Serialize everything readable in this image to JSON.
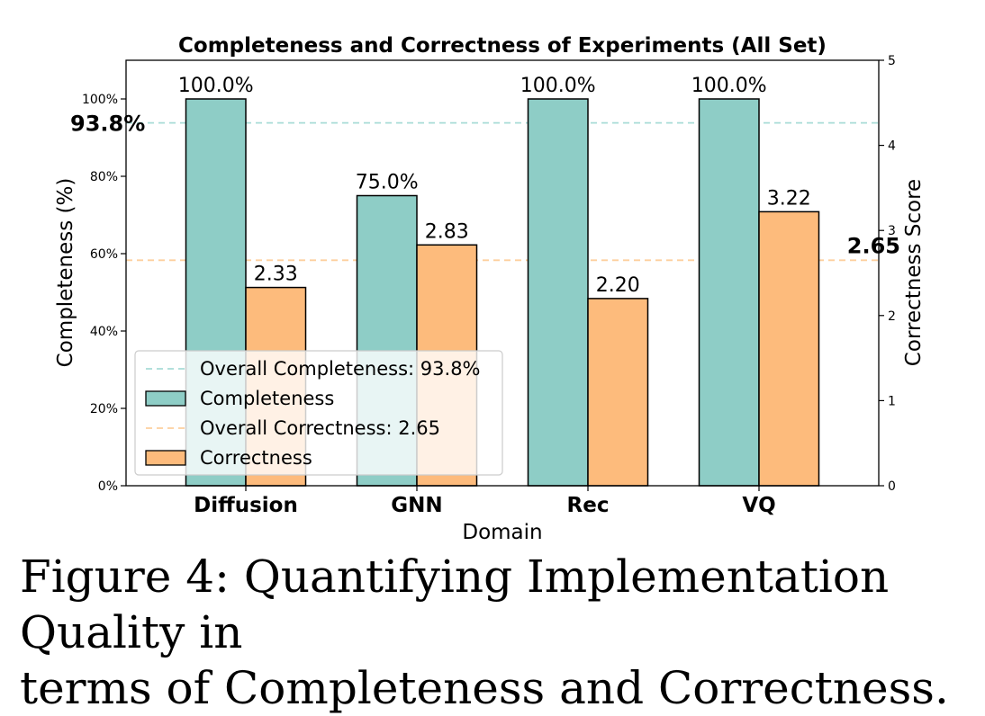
{
  "chart_data": {
    "type": "bar",
    "title": "Completeness and Correctness of Experiments (All Set)",
    "xlabel": "Domain",
    "ylabel_left": "Completeness (%)",
    "ylabel_right": "Correctness Score",
    "categories": [
      "Diffusion",
      "GNN",
      "Rec",
      "VQ"
    ],
    "ylim_left": [
      0,
      110
    ],
    "ylim_right": [
      0,
      5
    ],
    "left_ticks": [
      0,
      20,
      40,
      60,
      80,
      100
    ],
    "left_tick_labels": [
      "0%",
      "20%",
      "40%",
      "60%",
      "80%",
      "100%"
    ],
    "right_ticks": [
      0,
      1,
      2,
      3,
      4,
      5
    ],
    "right_tick_labels": [
      "0",
      "1",
      "2",
      "3",
      "4",
      "5"
    ],
    "series": [
      {
        "name": "Completeness",
        "axis": "left",
        "values": [
          100.0,
          75.0,
          100.0,
          100.0
        ],
        "labels": [
          "100.0%",
          "75.0%",
          "100.0%",
          "100.0%"
        ],
        "color": "#8ecdc6"
      },
      {
        "name": "Correctness",
        "axis": "right",
        "values": [
          2.33,
          2.83,
          2.2,
          3.22
        ],
        "labels": [
          "2.33",
          "2.83",
          "2.20",
          "3.22"
        ],
        "color": "#fdbb7c"
      }
    ],
    "reference_lines": [
      {
        "name": "Overall Completeness: 93.8%",
        "axis": "left",
        "value": 93.8,
        "label": "93.8%",
        "color": "#a8dcd7"
      },
      {
        "name": "Overall Correctness: 2.65",
        "axis": "right",
        "value": 2.65,
        "label": "2.65",
        "color": "#fdcf9e"
      }
    ],
    "legend_position": "lower-left",
    "legend": [
      {
        "kind": "line",
        "ref": 0,
        "label": "Overall Completeness: 93.8%"
      },
      {
        "kind": "patch",
        "series": 0,
        "label": "Completeness"
      },
      {
        "kind": "line",
        "ref": 1,
        "label": "Overall Correctness: 2.65"
      },
      {
        "kind": "patch",
        "series": 1,
        "label": "Correctness"
      }
    ]
  },
  "caption": {
    "line1": "Figure 4: Quantifying Implementation Quality in",
    "line2": "terms of Completeness and Correctness."
  }
}
